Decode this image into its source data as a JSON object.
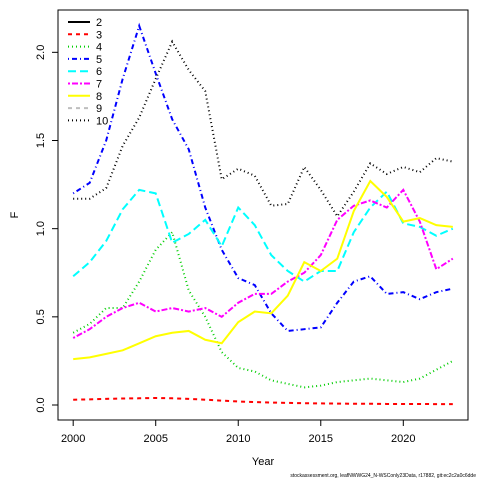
{
  "chart_data": {
    "type": "line",
    "x_label": "Year",
    "y_label": "F",
    "footer": "stockassessment.org, leafNWWG24_N-WSConly23Data, r17882, git:ec2c2a0c6dde",
    "x": [
      2000,
      2001,
      2002,
      2003,
      2004,
      2005,
      2006,
      2007,
      2008,
      2009,
      2010,
      2011,
      2012,
      2013,
      2014,
      2015,
      2016,
      2017,
      2018,
      2019,
      2020,
      2021,
      2022,
      2023
    ],
    "xlim": [
      1999.08,
      2023.92
    ],
    "xticks": [
      2000,
      2005,
      2010,
      2015,
      2020
    ],
    "ylim": [
      -0.085,
      2.24
    ],
    "yticks": [
      {
        "value": 0,
        "label": "0.0"
      },
      {
        "value": 0.5,
        "label": "0.5"
      },
      {
        "value": 1,
        "label": "1.0"
      },
      {
        "value": 1.5,
        "label": "1.5"
      },
      {
        "value": 2,
        "label": "2.0"
      }
    ],
    "legend": "top-left",
    "series": [
      {
        "name": "2",
        "color": "#000000",
        "dash": "none",
        "values": [
          null,
          null,
          null,
          null,
          null,
          null,
          null,
          null,
          null,
          null,
          null,
          null,
          null,
          null,
          null,
          null,
          null,
          null,
          null,
          null,
          null,
          null,
          null,
          null
        ]
      },
      {
        "name": "3",
        "color": "#ff0000",
        "dash": "4,4",
        "values": [
          0.03,
          0.032,
          0.035,
          0.037,
          0.038,
          0.04,
          0.038,
          0.035,
          0.03,
          0.025,
          0.02,
          0.017,
          0.014,
          0.012,
          0.01,
          0.009,
          0.008,
          0.007,
          0.007,
          0.006,
          0.006,
          0.006,
          0.005,
          0.005
        ]
      },
      {
        "name": "4",
        "color": "#00cd00",
        "dash": "1,3",
        "values": [
          0.41,
          0.46,
          0.55,
          0.55,
          0.7,
          0.88,
          0.98,
          0.65,
          0.5,
          0.3,
          0.21,
          0.19,
          0.14,
          0.12,
          0.1,
          0.11,
          0.13,
          0.14,
          0.15,
          0.14,
          0.13,
          0.15,
          0.2,
          0.25
        ]
      },
      {
        "name": "5",
        "color": "#0000ff",
        "dash": "1,3,5,3",
        "values": [
          1.2,
          1.26,
          1.5,
          1.85,
          2.15,
          1.88,
          1.62,
          1.45,
          1.12,
          0.88,
          0.72,
          0.68,
          0.52,
          0.42,
          0.43,
          0.44,
          0.58,
          0.7,
          0.73,
          0.63,
          0.64,
          0.6,
          0.64,
          0.66
        ]
      },
      {
        "name": "6",
        "color": "#00ffff",
        "dash": "8,4",
        "values": [
          0.73,
          0.81,
          0.93,
          1.11,
          1.22,
          1.2,
          0.92,
          0.97,
          1.05,
          0.9,
          1.12,
          1.02,
          0.85,
          0.76,
          0.7,
          0.76,
          0.76,
          0.98,
          1.12,
          1.21,
          1.03,
          1.01,
          0.96,
          1.0
        ]
      },
      {
        "name": "7",
        "color": "#ff00ff",
        "dash": "2,2,6,2",
        "values": [
          0.38,
          0.43,
          0.5,
          0.55,
          0.58,
          0.53,
          0.55,
          0.53,
          0.55,
          0.5,
          0.58,
          0.63,
          0.63,
          0.7,
          0.75,
          0.85,
          1.05,
          1.13,
          1.16,
          1.12,
          1.22,
          1.04,
          0.77,
          0.83
        ]
      },
      {
        "name": "8",
        "color": "#ffff00",
        "dash": "none",
        "values": [
          0.26,
          0.27,
          0.29,
          0.31,
          0.35,
          0.39,
          0.41,
          0.42,
          0.37,
          0.35,
          0.47,
          0.53,
          0.52,
          0.62,
          0.81,
          0.76,
          0.83,
          1.1,
          1.27,
          1.18,
          1.04,
          1.06,
          1.02,
          1.01
        ]
      },
      {
        "name": "9",
        "color": "#bebebe",
        "dash": "4,4",
        "values": [
          null,
          null,
          null,
          null,
          null,
          null,
          null,
          null,
          null,
          null,
          null,
          null,
          null,
          null,
          null,
          null,
          null,
          null,
          null,
          null,
          null,
          null,
          null,
          null
        ]
      },
      {
        "name": "10",
        "color": "#000000",
        "dash": "1,3",
        "values": [
          1.17,
          1.17,
          1.23,
          1.47,
          1.63,
          1.85,
          2.06,
          1.9,
          1.78,
          1.28,
          1.34,
          1.3,
          1.13,
          1.14,
          1.35,
          1.22,
          1.07,
          1.21,
          1.37,
          1.31,
          1.35,
          1.32,
          1.4,
          1.38
        ]
      }
    ]
  }
}
